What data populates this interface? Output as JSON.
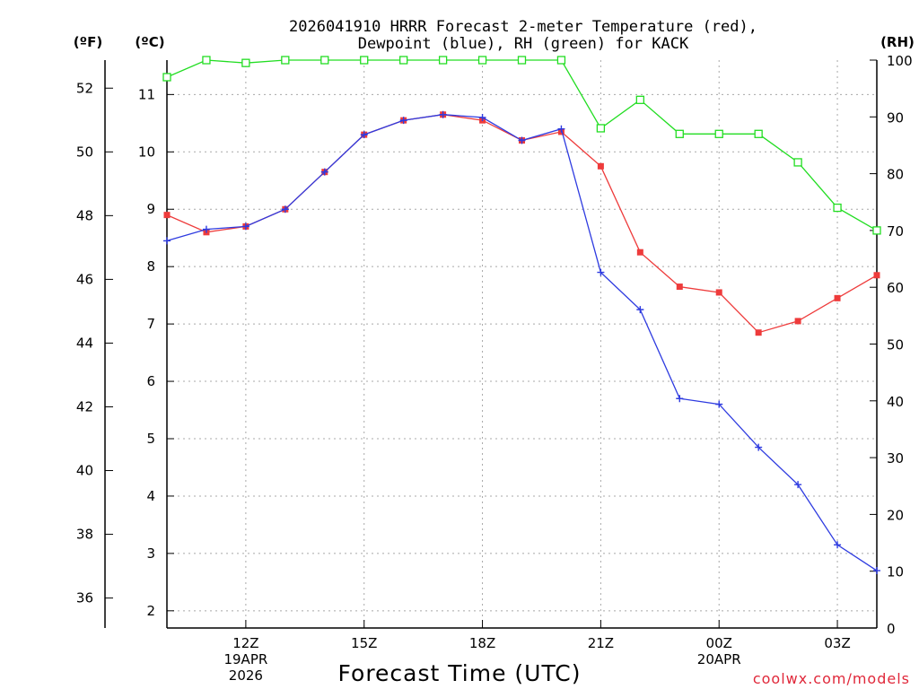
{
  "chart_data": {
    "type": "line",
    "title_line1": "2026041910 HRRR Forecast 2-meter Temperature (red),",
    "title_line2": "Dewpoint (blue), RH (green) for KACK",
    "xlabel": "Forecast Time (UTC)",
    "credit": "coolwx.com/models",
    "units": {
      "fahrenheit": "(ºF)",
      "celsius": "(ºC)",
      "rh": "(RH)"
    },
    "x_hours": [
      10,
      11,
      12,
      13,
      14,
      15,
      16,
      17,
      18,
      19,
      20,
      21,
      22,
      23,
      24,
      25,
      26,
      27,
      28
    ],
    "xlim": [
      10,
      28
    ],
    "celsius_lim": [
      1.7,
      11.6
    ],
    "rh_lim": [
      0,
      100
    ],
    "x_ticks": [
      {
        "hour": 12,
        "lines": [
          "12Z",
          "19APR",
          "2026"
        ]
      },
      {
        "hour": 15,
        "lines": [
          "15Z"
        ]
      },
      {
        "hour": 18,
        "lines": [
          "18Z"
        ]
      },
      {
        "hour": 21,
        "lines": [
          "21Z"
        ]
      },
      {
        "hour": 24,
        "lines": [
          "00Z",
          "20APR"
        ]
      },
      {
        "hour": 27,
        "lines": [
          "03Z"
        ]
      }
    ],
    "celsius_ticks": [
      2,
      3,
      4,
      5,
      6,
      7,
      8,
      9,
      10,
      11
    ],
    "fahrenheit_ticks": [
      36,
      38,
      40,
      42,
      44,
      46,
      48,
      50,
      52
    ],
    "rh_ticks": [
      0,
      10,
      20,
      30,
      40,
      50,
      60,
      70,
      80,
      90,
      100
    ],
    "series": [
      {
        "name": "Temperature",
        "color": "#ee3b3b",
        "axis": "celsius",
        "marker": "square",
        "values": [
          8.9,
          8.6,
          8.7,
          9.0,
          9.65,
          10.3,
          10.55,
          10.65,
          10.55,
          10.2,
          10.35,
          9.75,
          8.25,
          7.65,
          7.55,
          6.85,
          7.05,
          7.45,
          7.85
        ]
      },
      {
        "name": "Dewpoint",
        "color": "#2e3be0",
        "axis": "celsius",
        "marker": "plus",
        "values": [
          8.45,
          8.65,
          8.7,
          9.0,
          9.65,
          10.3,
          10.55,
          10.65,
          10.6,
          10.2,
          10.4,
          7.9,
          7.25,
          5.7,
          5.6,
          4.85,
          4.2,
          3.15,
          2.7
        ]
      },
      {
        "name": "RH",
        "color": "#22dd22",
        "axis": "rh",
        "marker": "open-square",
        "values": [
          97,
          100,
          99.5,
          100,
          100,
          100,
          100,
          100,
          100,
          100,
          100,
          88,
          93,
          87,
          87,
          87,
          82,
          74,
          70
        ]
      }
    ]
  }
}
